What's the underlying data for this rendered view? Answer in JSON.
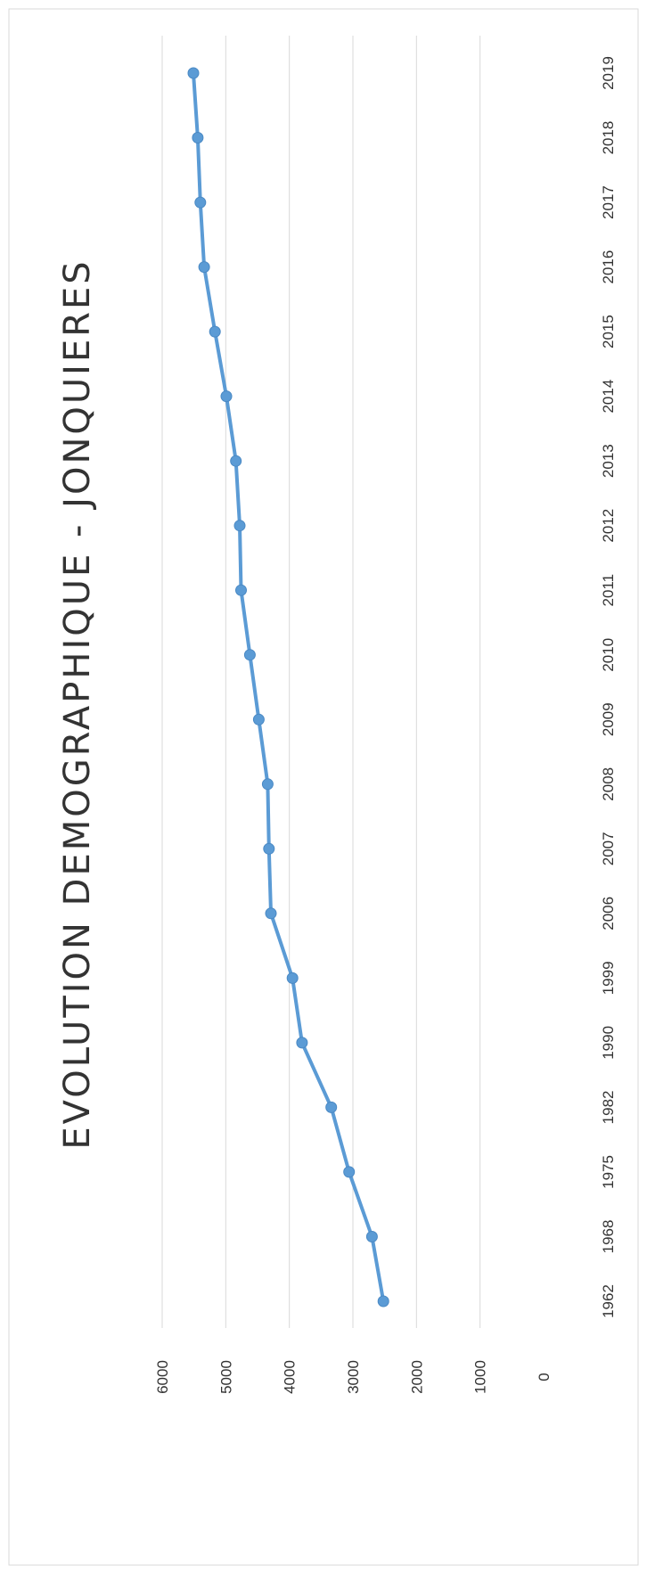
{
  "chart_data": {
    "type": "line",
    "title": "EVOLUTION DEMOGRAPHIQUE - JONQUIERES",
    "categories": [
      "1962",
      "1968",
      "1975",
      "1982",
      "1990",
      "1999",
      "2006",
      "2007",
      "2008",
      "2009",
      "2010",
      "2011",
      "2012",
      "2013",
      "2014",
      "2015",
      "2016",
      "2017",
      "2018",
      "2019"
    ],
    "values": [
      2520,
      2700,
      3060,
      3340,
      3800,
      3950,
      4290,
      4320,
      4340,
      4480,
      4620,
      4760,
      4780,
      4840,
      4990,
      5170,
      5340,
      5400,
      5440,
      5510
    ],
    "y_ticks": [
      "6000",
      "5000",
      "4000",
      "3000",
      "2000",
      "1000",
      "0"
    ],
    "ylim": [
      0,
      6000
    ],
    "orientation": "rotated 90° clockwise — categories read along the right edge, values increase to the left",
    "grid": true,
    "color": "#5b9bd5"
  }
}
